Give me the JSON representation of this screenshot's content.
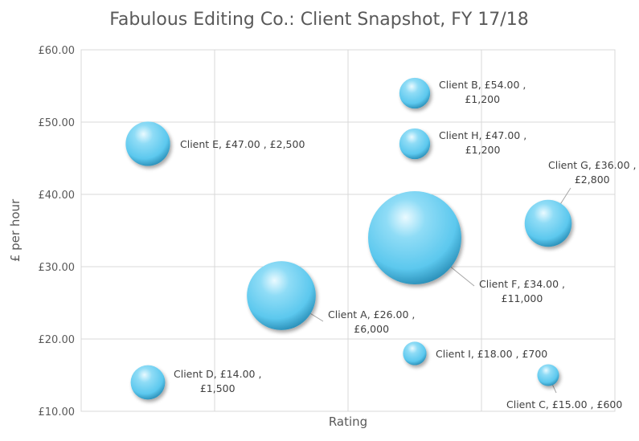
{
  "chart_data": {
    "type": "bubble",
    "title": "Fabulous Editing Co.: Client Snapshot, FY 17/18",
    "xlabel": "Rating",
    "ylabel": "£ per hour",
    "xlim": [
      0,
      4
    ],
    "ylim": [
      10,
      60
    ],
    "yticks": [
      10,
      20,
      30,
      40,
      50,
      60
    ],
    "ytick_labels": [
      "£10.00",
      "£20.00",
      "£30.00",
      "£40.00",
      "£50.00",
      "£60.00"
    ],
    "x_gridlines": [
      0,
      1,
      2,
      3,
      4
    ],
    "grid": true,
    "legend": "none",
    "bubble_color": "#6fd0f0",
    "points": [
      {
        "client": "Client A",
        "x": 1.5,
        "y": 26,
        "size": 6000,
        "label_lines": [
          "Client A,  £26.00 ,",
          "£6,000"
        ]
      },
      {
        "client": "Client B",
        "x": 2.5,
        "y": 54,
        "size": 1200,
        "label_lines": [
          "Client B,  £54.00 ,",
          "£1,200"
        ]
      },
      {
        "client": "Client C",
        "x": 3.5,
        "y": 15,
        "size": 600,
        "label_lines": [
          "Client C,  £15.00 , £600"
        ]
      },
      {
        "client": "Client D",
        "x": 0.5,
        "y": 14,
        "size": 1500,
        "label_lines": [
          "Client D,  £14.00 ,",
          "£1,500"
        ]
      },
      {
        "client": "Client E",
        "x": 0.5,
        "y": 47,
        "size": 2500,
        "label_lines": [
          "Client E,  £47.00 , £2,500"
        ]
      },
      {
        "client": "Client F",
        "x": 2.5,
        "y": 34,
        "size": 11000,
        "label_lines": [
          "Client F,  £34.00 ,",
          "£11,000"
        ]
      },
      {
        "client": "Client G",
        "x": 3.5,
        "y": 36,
        "size": 2800,
        "label_lines": [
          "Client G,  £36.00 ,",
          "£2,800"
        ]
      },
      {
        "client": "Client H",
        "x": 2.5,
        "y": 47,
        "size": 1200,
        "label_lines": [
          "Client H,  £47.00 ,",
          "£1,200"
        ]
      },
      {
        "client": "Client I",
        "x": 2.5,
        "y": 18,
        "size": 700,
        "label_lines": [
          "Client I,  £18.00 , £700"
        ]
      }
    ]
  }
}
